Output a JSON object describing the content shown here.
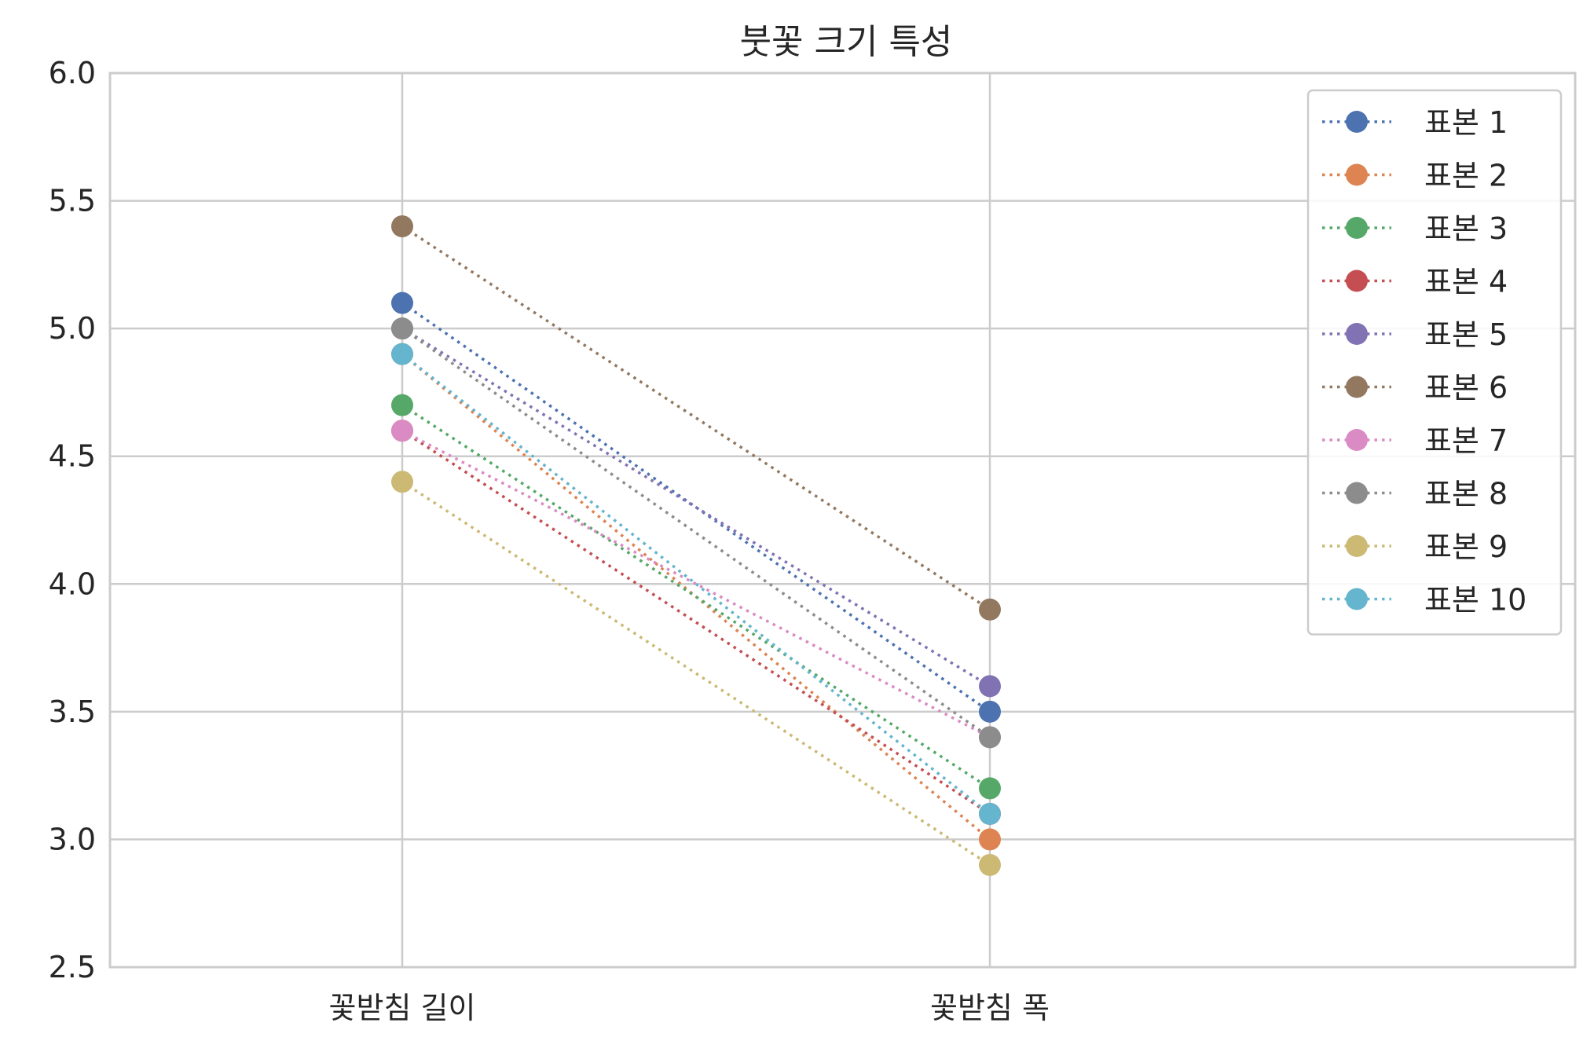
{
  "chart_data": {
    "type": "line",
    "title": "붓꽃 크기 특성",
    "xlabel": "",
    "ylabel": "",
    "categories": [
      "꽃받침 길이",
      "꽃받침 폭"
    ],
    "ylim": [
      2.5,
      6.0
    ],
    "yticks": [
      "2.5",
      "3.0",
      "3.5",
      "4.0",
      "4.5",
      "5.0",
      "5.5",
      "6.0"
    ],
    "grid": true,
    "line_style": "dotted",
    "marker": "circle",
    "legend_position": "top-right",
    "series": [
      {
        "name": "표본 1",
        "values": [
          5.1,
          3.5
        ],
        "color": "#4c72b0"
      },
      {
        "name": "표본 2",
        "values": [
          4.9,
          3.0
        ],
        "color": "#dd8452"
      },
      {
        "name": "표본 3",
        "values": [
          4.7,
          3.2
        ],
        "color": "#55a868"
      },
      {
        "name": "표본 4",
        "values": [
          4.6,
          3.1
        ],
        "color": "#c44e52"
      },
      {
        "name": "표본 5",
        "values": [
          5.0,
          3.6
        ],
        "color": "#8172b3"
      },
      {
        "name": "표본 6",
        "values": [
          5.4,
          3.9
        ],
        "color": "#937860"
      },
      {
        "name": "표본 7",
        "values": [
          4.6,
          3.4
        ],
        "color": "#da8bc3"
      },
      {
        "name": "표본 8",
        "values": [
          5.0,
          3.4
        ],
        "color": "#8c8c8c"
      },
      {
        "name": "표본 9",
        "values": [
          4.4,
          2.9
        ],
        "color": "#ccb974"
      },
      {
        "name": "표본 10",
        "values": [
          4.9,
          3.1
        ],
        "color": "#64b5cd"
      }
    ]
  }
}
